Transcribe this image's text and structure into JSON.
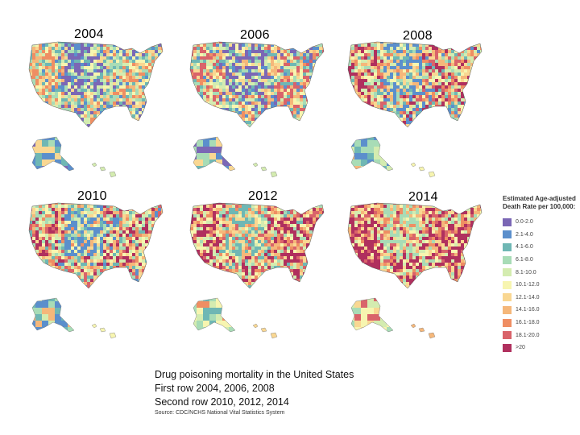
{
  "years": [
    "2004",
    "2006",
    "2008",
    "2010",
    "2012",
    "2014"
  ],
  "legend": {
    "title_line1": "Estimated Age-adjusted",
    "title_line2": "Death Rate per 100,000:",
    "items": [
      {
        "label": "0.0-2.0",
        "color": "#7b67b5"
      },
      {
        "label": "2.1-4.0",
        "color": "#5b8fcc"
      },
      {
        "label": "4.1-6.0",
        "color": "#6fb7b4"
      },
      {
        "label": "6.1-8.0",
        "color": "#a8dcb6"
      },
      {
        "label": "8.1-10.0",
        "color": "#d4ecb0"
      },
      {
        "label": "10.1-12.0",
        "color": "#f7f5b0"
      },
      {
        "label": "12.1-14.0",
        "color": "#f9d792"
      },
      {
        "label": "14.1-16.0",
        "color": "#f5b77a"
      },
      {
        "label": "16.1-18.0",
        "color": "#ef8e63"
      },
      {
        "label": "18.1-20.0",
        "color": "#d9636a"
      },
      {
        "label": ">20",
        "color": "#b0305e"
      }
    ]
  },
  "caption": {
    "line1": "Drug poisoning mortality in the United States",
    "line2": "First row 2004, 2006, 2008",
    "line3": "Second row 2010, 2012, 2014",
    "source": "Source: CDC/NCHS National Vital Statistics System"
  },
  "palette_by_year": [
    [
      "#7b67b5",
      "#5b8fcc",
      "#6fb7b4",
      "#a8dcb6",
      "#d4ecb0",
      "#f7f5b0",
      "#f9d792",
      "#f5b77a",
      "#ef8e63"
    ],
    [
      "#7b67b5",
      "#5b8fcc",
      "#6fb7b4",
      "#a8dcb6",
      "#d4ecb0",
      "#f7f5b0",
      "#f9d792",
      "#f5b77a",
      "#ef8e63",
      "#d9636a"
    ],
    [
      "#5b8fcc",
      "#6fb7b4",
      "#a8dcb6",
      "#d4ecb0",
      "#f7f5b0",
      "#f9d792",
      "#f5b77a",
      "#ef8e63",
      "#d9636a",
      "#b0305e"
    ],
    [
      "#5b8fcc",
      "#6fb7b4",
      "#a8dcb6",
      "#d4ecb0",
      "#f7f5b0",
      "#f9d792",
      "#f5b77a",
      "#ef8e63",
      "#d9636a",
      "#b0305e"
    ],
    [
      "#6fb7b4",
      "#a8dcb6",
      "#d4ecb0",
      "#f7f5b0",
      "#f9d792",
      "#f5b77a",
      "#ef8e63",
      "#d9636a",
      "#b0305e",
      "#b0305e"
    ],
    [
      "#a8dcb6",
      "#d4ecb0",
      "#f7f5b0",
      "#f9d792",
      "#f5b77a",
      "#ef8e63",
      "#d9636a",
      "#b0305e",
      "#b0305e",
      "#b0305e"
    ]
  ]
}
